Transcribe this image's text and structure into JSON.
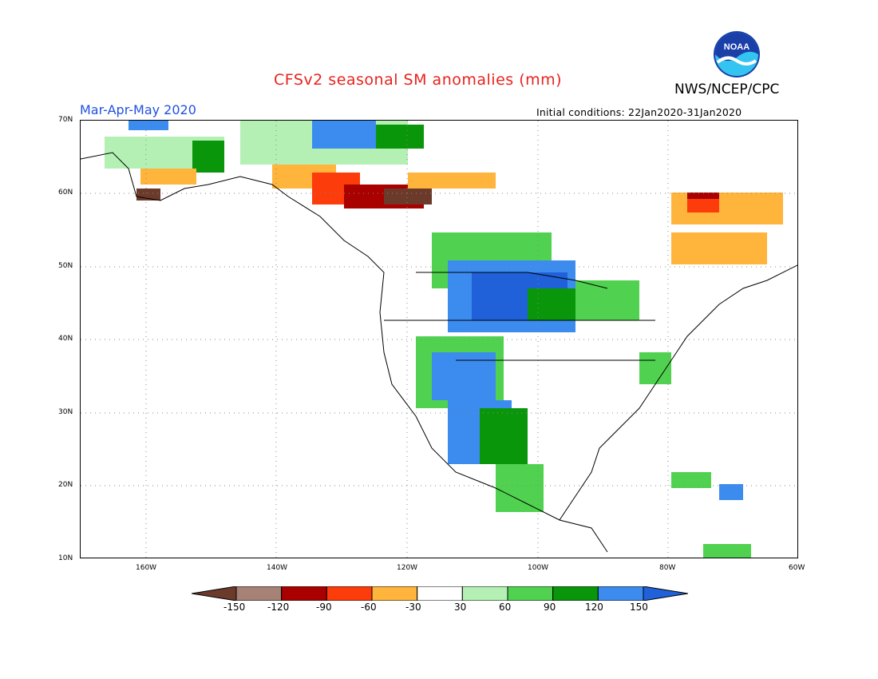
{
  "title": "CFSv2 seasonal SM anomalies (mm)",
  "org": "NWS/NCEP/CPC",
  "logo_text": "NOAA",
  "season": "Mar-Apr-May 2020",
  "initial_conditions": "Initial conditions: 22Jan2020-31Jan2020",
  "map": {
    "lat_labels": [
      "70N",
      "60N",
      "50N",
      "40N",
      "30N",
      "20N",
      "10N"
    ],
    "lon_labels": [
      "160W",
      "140W",
      "120W",
      "100W",
      "80W",
      "60W"
    ],
    "extent": {
      "lon_min": -170,
      "lon_max": -60,
      "lat_min": 10,
      "lat_max": 70
    }
  },
  "legend": {
    "labels": [
      "-150",
      "-120",
      "-90",
      "-60",
      "-30",
      "30",
      "60",
      "90",
      "120",
      "150"
    ],
    "colors": [
      "#6b3a2a",
      "#a58275",
      "#a90000",
      "#fc3c0a",
      "#ffb43c",
      "#ffffff",
      "#b4f0b4",
      "#50d250",
      "#0a960a",
      "#3c8cf0",
      "#2060d8"
    ]
  }
}
